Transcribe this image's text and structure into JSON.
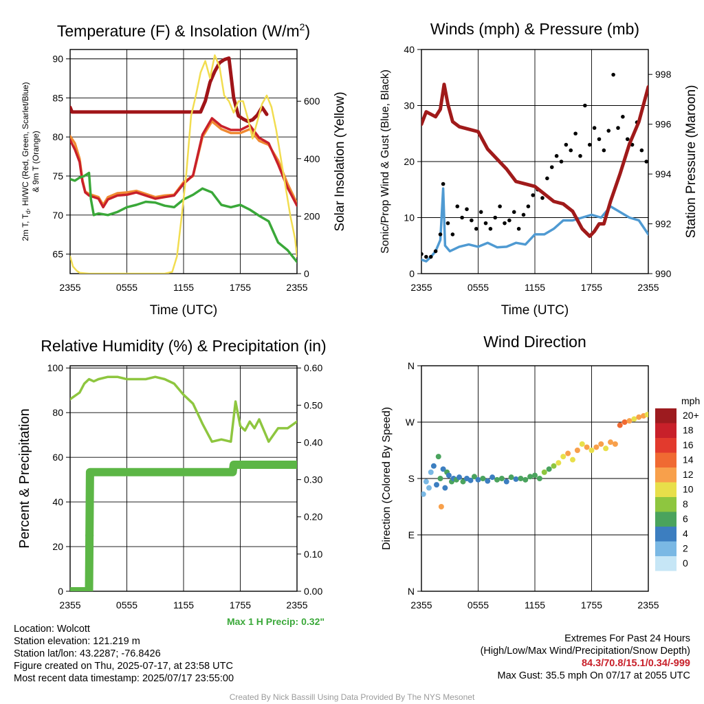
{
  "colors": {
    "temp": "#c8202a",
    "dewpoint": "#3aa839",
    "heat_index": "#a01418",
    "temp_9m": "#f08a32",
    "solar": "#f2dd50",
    "sonic_wind": "#4f9ad2",
    "gust": "#000000",
    "pressure": "#a01a1a",
    "rh": "#8ec63f",
    "precip": "#5cb646",
    "extremes_text": "#c8202a",
    "precip_text": "#3aa839"
  },
  "chart_data": [
    {
      "id": "temp",
      "type": "line",
      "title": "Temperature (F) & Insolation (W/m",
      "title_sup": "2",
      "title_tail": ")",
      "xlabel": "Time (UTC)",
      "ylabel_lines": [
        "2m T, T",
        "d",
        ", HI/WC (Red, Green, Scarlet/Blue)",
        "& 9m T (Orange)"
      ],
      "ylabel2": "Solar Insolation (Yellow)",
      "xticks": [
        "2355",
        "0555",
        "1155",
        "1755",
        "2355"
      ],
      "yticks": [
        "65",
        "70",
        "75",
        "80",
        "85",
        "90"
      ],
      "ylim": [
        62.5,
        91.2
      ],
      "y2ticks": [
        "0",
        "200",
        "400",
        "600"
      ],
      "y2lim": [
        0,
        780
      ],
      "xlim": [
        0,
        24
      ],
      "series": [
        {
          "key": "temp_9m",
          "x": [
            0,
            0.5,
            1,
            1.3,
            1.6,
            2,
            3,
            3.5,
            4,
            5,
            6,
            7,
            8,
            9,
            10,
            11,
            12,
            13,
            14,
            15,
            16,
            17,
            18,
            19,
            20,
            21,
            22,
            23,
            24
          ],
          "y": [
            80.1,
            79.2,
            77.2,
            74.5,
            73.0,
            72.7,
            72.3,
            71.3,
            72.3,
            72.8,
            72.9,
            73.1,
            72.7,
            72.3,
            72.5,
            72.6,
            74.2,
            75.0,
            80.0,
            82.0,
            81.0,
            80.5,
            80.5,
            81.0,
            79.5,
            79.0,
            77.0,
            74.0,
            71.5
          ]
        },
        {
          "key": "temp",
          "x": [
            0,
            0.5,
            1,
            1.3,
            1.6,
            2,
            3,
            3.5,
            4,
            5,
            6,
            7,
            8,
            9,
            10,
            11,
            12,
            13,
            14,
            15,
            16,
            17,
            18,
            19,
            20,
            21,
            22,
            23,
            24
          ],
          "y": [
            79.6,
            78.4,
            76.8,
            74.3,
            72.9,
            72.5,
            72.1,
            71.0,
            72.0,
            72.5,
            72.6,
            72.9,
            72.5,
            72.1,
            72.3,
            72.5,
            74.0,
            75.1,
            80.3,
            82.4,
            81.4,
            80.9,
            80.9,
            81.5,
            79.9,
            79.2,
            76.5,
            73.5,
            71.2
          ]
        },
        {
          "key": "heat_index",
          "x": [
            0,
            0.2,
            13.8,
            14.3,
            14.8,
            15.3,
            15.8,
            16.3,
            16.8,
            17.3,
            17.8,
            18.3,
            18.8,
            19.3,
            19.8,
            20.3,
            20.8
          ],
          "y": [
            83.8,
            83.2,
            83.2,
            84.6,
            87.0,
            88.4,
            89.5,
            89.9,
            90.1,
            85.0,
            82.7,
            82.3,
            82.0,
            82.2,
            82.8,
            83.8,
            82.9
          ]
        },
        {
          "key": "dewpoint",
          "x": [
            0,
            0.5,
            1,
            1.5,
            2,
            2.2,
            2.5,
            3,
            4,
            5,
            6,
            7,
            8,
            9,
            10,
            11,
            12,
            13,
            14,
            15,
            16,
            17,
            18,
            19,
            20,
            21,
            22,
            23,
            24
          ],
          "y": [
            74.6,
            74.4,
            74.8,
            75.0,
            75.4,
            72.0,
            70.0,
            70.2,
            70.0,
            70.4,
            71.0,
            71.3,
            71.7,
            71.6,
            71.2,
            71.0,
            72.0,
            72.6,
            73.4,
            72.9,
            71.3,
            71.0,
            71.3,
            70.7,
            69.9,
            69.2,
            66.5,
            65.5,
            64.0
          ]
        },
        {
          "key": "solar",
          "y_axis": "right",
          "x": [
            0,
            0.3,
            0.7,
            1,
            2,
            4,
            6,
            8,
            10,
            10.8,
            11.3,
            11.8,
            12.3,
            12.8,
            13.3,
            13.8,
            14.3,
            14.8,
            15.3,
            15.8,
            16.3,
            16.8,
            17.3,
            17.8,
            18.3,
            18.8,
            19.3,
            19.8,
            20.3,
            20.8,
            21.3,
            21.8,
            22.3,
            22.8,
            23.3,
            23.8,
            24
          ],
          "y": [
            60,
            25,
            10,
            3,
            0,
            0,
            0,
            0,
            0,
            6,
            60,
            200,
            350,
            550,
            620,
            700,
            740,
            680,
            760,
            720,
            620,
            600,
            560,
            600,
            600,
            540,
            470,
            530,
            590,
            620,
            580,
            500,
            400,
            300,
            200,
            120,
            60
          ]
        }
      ]
    },
    {
      "id": "wind",
      "type": "line",
      "title": "Winds (mph) & Pressure (mb)",
      "xlabel": "Time (UTC)",
      "ylabel": "Sonic/Prop Wind & Gust (Blue, Black)",
      "ylabel2": "Station Pressure (Maroon)",
      "xticks": [
        "2355",
        "0555",
        "1155",
        "1755",
        "2355"
      ],
      "yticks": [
        "0",
        "10",
        "20",
        "30",
        "40"
      ],
      "ylim": [
        0,
        40
      ],
      "y2ticks": [
        "990",
        "992",
        "994",
        "996",
        "998"
      ],
      "y2lim": [
        990,
        999
      ],
      "xlim": [
        0,
        24
      ],
      "series": [
        {
          "key": "sonic_wind",
          "x": [
            0,
            0.5,
            1,
            1.5,
            2,
            2.3,
            2.5,
            3,
            4,
            5,
            6,
            7,
            8,
            9,
            10,
            11,
            12,
            13,
            14,
            15,
            16,
            17,
            18,
            19,
            20,
            21,
            22,
            23,
            24
          ],
          "y": [
            2.5,
            2.2,
            3.0,
            4.0,
            6.0,
            15.2,
            5.0,
            4.0,
            4.8,
            5.2,
            4.8,
            5.5,
            4.7,
            4.8,
            5.5,
            5.2,
            7.0,
            7.0,
            8.0,
            9.5,
            9.5,
            10.0,
            10.5,
            10.0,
            12.0,
            11.0,
            10.0,
            9.5,
            7.0
          ]
        },
        {
          "key": "gust",
          "mode": "points",
          "x": [
            0,
            0.5,
            1,
            1.5,
            2,
            2.3,
            2.8,
            3.3,
            3.8,
            4.3,
            4.8,
            5.3,
            5.8,
            6.3,
            6.8,
            7.3,
            7.8,
            8.3,
            8.8,
            9.3,
            9.8,
            10.3,
            10.8,
            11.3,
            11.8,
            12.3,
            12.8,
            13.3,
            13.8,
            14.3,
            14.8,
            15.3,
            15.8,
            16.3,
            16.8,
            17.3,
            17.8,
            18.3,
            18.8,
            19.3,
            19.8,
            20.3,
            20.8,
            21.3,
            21.8,
            22.3,
            22.8,
            23.3,
            23.8
          ],
          "y": [
            3.5,
            3.0,
            3.0,
            4.0,
            7.0,
            16.0,
            9.0,
            7.0,
            12.0,
            10.0,
            11.5,
            9.5,
            8.0,
            11.0,
            9.0,
            8.0,
            10.0,
            12.0,
            9.0,
            9.5,
            11.0,
            8.0,
            10.5,
            12.0,
            14.0,
            15.0,
            13.5,
            17.0,
            19.0,
            21.0,
            20.0,
            23.0,
            22.0,
            25.0,
            21.0,
            30.0,
            23.0,
            26.0,
            24.0,
            22.0,
            25.5,
            35.5,
            26.0,
            28.0,
            24.0,
            23.0,
            27.0,
            22.0,
            20.0
          ]
        },
        {
          "key": "pressure",
          "y_axis": "right",
          "x": [
            0,
            0.5,
            1,
            1.5,
            2,
            2.4,
            2.8,
            3.3,
            4,
            5,
            6,
            7,
            8,
            9,
            10,
            11,
            12,
            13,
            14,
            15,
            16,
            17,
            17.8,
            18.3,
            18.8,
            19.3,
            20,
            21,
            22,
            23,
            24
          ],
          "y": [
            996.0,
            996.5,
            996.4,
            996.3,
            996.6,
            997.6,
            996.8,
            996.1,
            995.9,
            995.8,
            995.7,
            995.0,
            994.6,
            994.2,
            993.7,
            993.6,
            993.5,
            993.2,
            992.9,
            992.8,
            992.5,
            991.8,
            991.5,
            991.7,
            992.0,
            992.0,
            992.9,
            994.0,
            995.2,
            996.1,
            997.5
          ]
        }
      ]
    },
    {
      "id": "rh",
      "type": "line",
      "title": "Relative Humidity (%) & Precipitation (in)",
      "ylabel": "Percent & Precipitation",
      "xticks": [
        "2355",
        "0555",
        "1155",
        "1755",
        "2355"
      ],
      "yticks": [
        "0",
        "20",
        "40",
        "60",
        "80",
        "100"
      ],
      "ylim": [
        0,
        101
      ],
      "y2ticks": [
        "0.00",
        "0.10",
        "0.20",
        "0.30",
        "0.40",
        "0.50",
        "0.60"
      ],
      "y2lim": [
        0,
        0.606
      ],
      "xlim": [
        0,
        24
      ],
      "series": [
        {
          "key": "rh",
          "x": [
            0,
            1,
            1.5,
            2,
            2.5,
            3,
            4,
            5,
            6,
            7,
            8,
            9,
            10,
            11,
            12,
            13,
            14,
            15,
            16,
            17,
            17.5,
            18,
            18.5,
            19,
            19.5,
            20,
            21,
            22,
            23,
            24
          ],
          "y": [
            86,
            89,
            93,
            95,
            94,
            95,
            96,
            96,
            95,
            95,
            95,
            96,
            95,
            93,
            88,
            84,
            75,
            67,
            68,
            67,
            85,
            74,
            72,
            76,
            73,
            77,
            67,
            73,
            73,
            76
          ]
        },
        {
          "key": "precip",
          "y_axis": "right",
          "mode": "thick",
          "x": [
            0,
            2,
            2.1,
            2.3,
            17.2,
            17.3,
            24
          ],
          "y": [
            0.0,
            0.0,
            0.32,
            0.32,
            0.32,
            0.34,
            0.34
          ]
        },
        {
          "key": "precip",
          "y_axis": "right",
          "mode": "points",
          "x": [
            2.05
          ],
          "y": [
            0.15
          ]
        }
      ],
      "max_precip_label": "Max 1 H Precip: 0.32\""
    },
    {
      "id": "dir",
      "type": "scatter",
      "title": "Wind Direction",
      "ylabel": "Direction (Colored By Speed)",
      "xticks": [
        "2355",
        "0555",
        "1155",
        "1755",
        "2355"
      ],
      "yticks": [
        "N",
        "E",
        "S",
        "W",
        "N"
      ],
      "ylim": [
        0,
        360
      ],
      "xlim": [
        0,
        24
      ],
      "legend_title": "mph",
      "legend_labels": [
        "20+",
        "18",
        "16",
        "14",
        "12",
        "10",
        "8",
        "6",
        "4",
        "2",
        "0"
      ],
      "legend_colors": [
        "#9d1b1f",
        "#c8202a",
        "#e23a2d",
        "#f06a32",
        "#f8a04b",
        "#e8df4a",
        "#8ec63f",
        "#4aa35d",
        "#3c7ec0",
        "#7ab8e4",
        "#c6e6f6"
      ],
      "points_x": [
        0.2,
        0.5,
        0.8,
        1.0,
        1.3,
        1.6,
        1.8,
        2.0,
        2.1,
        2.3,
        2.5,
        2.7,
        2.9,
        3.2,
        3.4,
        3.7,
        4.0,
        4.4,
        4.8,
        5.2,
        5.6,
        6.0,
        6.5,
        7.0,
        7.5,
        8.0,
        8.5,
        9.0,
        9.5,
        10.0,
        10.5,
        11.0,
        11.5,
        12.0,
        12.5,
        13.0,
        13.5,
        14.0,
        14.5,
        15.0,
        15.5,
        16.0,
        16.5,
        17.0,
        17.5,
        18.0,
        18.5,
        19.0,
        19.5,
        20.0,
        20.5,
        21.0,
        21.5,
        22.0,
        22.5,
        23.0,
        23.5,
        23.9
      ],
      "points_y": [
        155,
        175,
        165,
        190,
        200,
        170,
        215,
        180,
        135,
        195,
        165,
        190,
        185,
        175,
        180,
        178,
        182,
        175,
        180,
        177,
        183,
        178,
        180,
        176,
        182,
        178,
        180,
        175,
        182,
        179,
        180,
        178,
        183,
        185,
        180,
        190,
        195,
        200,
        205,
        215,
        220,
        210,
        225,
        235,
        230,
        225,
        230,
        235,
        228,
        238,
        235,
        265,
        270,
        272,
        275,
        278,
        280,
        282
      ],
      "points_speed": [
        1,
        2,
        1,
        2,
        3,
        4,
        5,
        6,
        12,
        4,
        3,
        5,
        4,
        5,
        4,
        6,
        4,
        5,
        4,
        4,
        5,
        4,
        5,
        4,
        4,
        5,
        5,
        4,
        5,
        4,
        5,
        5,
        6,
        6,
        5,
        7,
        6,
        8,
        9,
        10,
        11,
        9,
        12,
        10,
        11,
        9,
        12,
        12,
        10,
        12,
        11,
        13,
        14,
        12,
        10,
        12,
        11,
        10
      ]
    }
  ],
  "info_left": {
    "location": "Location: Wolcott",
    "elevation": "Station elevation: 121.219 m",
    "latlon": "Station lat/lon: 43.2287; -76.8426",
    "created": "Figure created on Thu, 2025-07-17, at 23:58 UTC",
    "recent": "Most recent data timestamp: 2025/07/17 23:55:00"
  },
  "info_right": {
    "extremes_title": "Extremes For Past 24 Hours",
    "extremes_subtitle": "(High/Low/Max Wind/Precipitation/Snow Depth)",
    "extremes_values": "84.3/70.8/15.1/0.34/-999",
    "max_gust": "Max Gust: 35.5 mph On 07/17 at 2055 UTC"
  },
  "credit": "Created By Nick Bassill Using Data Provided By The NYS Mesonet"
}
